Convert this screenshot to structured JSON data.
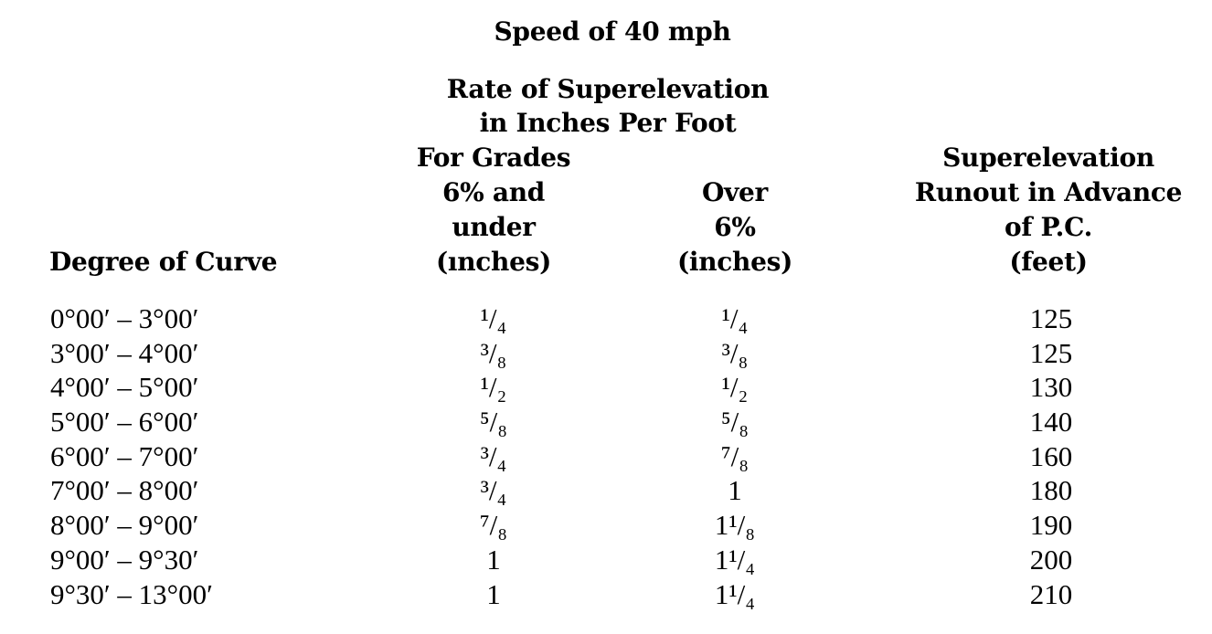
{
  "title": "Speed of 40 mph",
  "group_header": [
    "Rate of Superelevation",
    "in Inches Per Foot"
  ],
  "columns": {
    "degree": "Degree of Curve",
    "under": [
      "For Grades",
      "6% and",
      "under",
      "(ınches)"
    ],
    "over": [
      "Over",
      "6%",
      "(inches)"
    ],
    "runout": [
      "Superelevation",
      "Runout in Advance",
      "of P.C.",
      "(feet)"
    ]
  },
  "rows": [
    {
      "degree": "0°00′ – 3°00′",
      "under": "¹/₄",
      "over": "¹/₄",
      "runout": "125"
    },
    {
      "degree": "3°00′ – 4°00′",
      "under": "³/₈",
      "over": "³/₈",
      "runout": "125"
    },
    {
      "degree": "4°00′ – 5°00′",
      "under": "¹/₂",
      "over": "¹/₂",
      "runout": "130"
    },
    {
      "degree": "5°00′ – 6°00′",
      "under": "⁵/₈",
      "over": "⁵/₈",
      "runout": "140"
    },
    {
      "degree": "6°00′ – 7°00′",
      "under": "³/₄",
      "over": "⁷/₈",
      "runout": "160"
    },
    {
      "degree": "7°00′ – 8°00′",
      "under": "³/₄",
      "over": "1",
      "runout": "180"
    },
    {
      "degree": "8°00′ – 9°00′",
      "under": "⁷/₈",
      "over": "1¹/₈",
      "runout": "190"
    },
    {
      "degree": "9°00′ – 9°30′",
      "under": "1",
      "over": "1¹/₄",
      "runout": "200"
    },
    {
      "degree": "9°30′ – 13°00′",
      "under": "1",
      "over": "1¹/₄",
      "runout": "210"
    }
  ]
}
